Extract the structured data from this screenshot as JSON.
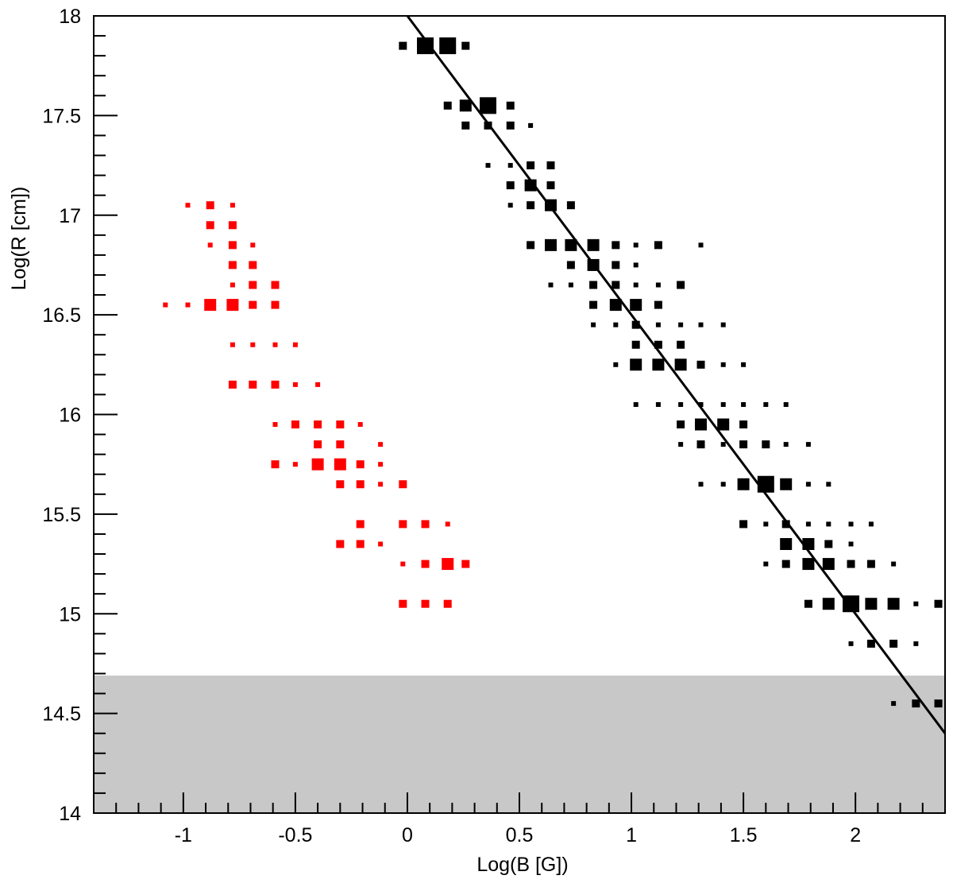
{
  "chart_data": {
    "type": "scatter",
    "title": "",
    "xlabel": "Log(B [G])",
    "ylabel": "Log(R [cm])",
    "xlim": [
      -1.4,
      2.4
    ],
    "ylim": [
      14,
      18
    ],
    "xticks": [
      "-1",
      "-0.5",
      "0",
      "0.5",
      "1",
      "1.5",
      "2"
    ],
    "xtick_values": [
      -1,
      -0.5,
      0,
      0.5,
      1,
      1.5,
      2
    ],
    "yticks": [
      "14",
      "14.5",
      "15",
      "15.5",
      "16",
      "16.5",
      "17",
      "17.5",
      "18"
    ],
    "ytick_values": [
      14,
      14.5,
      15,
      15.5,
      16,
      16.5,
      17,
      17.5,
      18
    ],
    "grid": false,
    "marker": "box, size proportional to bin content (relative weight 1-4)",
    "shaded_region": {
      "y_from": 14,
      "y_to": 14.69,
      "color": "#c8c8c8"
    },
    "fit_line": {
      "slope": -1.5,
      "intercept": 18,
      "color": "#000000"
    },
    "series": [
      {
        "color": "#000000",
        "rows": [
          [
            17.85,
            [
              [
                -0.02,
                2
              ],
              [
                0.08,
                4
              ],
              [
                0.18,
                4
              ],
              [
                0.26,
                2
              ]
            ]
          ],
          [
            17.55,
            [
              [
                0.18,
                2
              ],
              [
                0.26,
                3
              ],
              [
                0.36,
                4
              ],
              [
                0.46,
                2
              ]
            ]
          ],
          [
            17.45,
            [
              [
                0.26,
                2
              ],
              [
                0.36,
                2
              ],
              [
                0.46,
                2
              ],
              [
                0.55,
                1
              ]
            ]
          ],
          [
            17.25,
            [
              [
                0.36,
                1
              ],
              [
                0.46,
                1
              ],
              [
                0.55,
                2
              ],
              [
                0.64,
                2
              ]
            ]
          ],
          [
            17.15,
            [
              [
                0.46,
                2
              ],
              [
                0.55,
                3
              ],
              [
                0.64,
                2
              ]
            ]
          ],
          [
            17.05,
            [
              [
                0.46,
                1
              ],
              [
                0.55,
                2
              ],
              [
                0.64,
                3
              ],
              [
                0.73,
                2
              ]
            ]
          ],
          [
            16.85,
            [
              [
                0.55,
                2
              ],
              [
                0.64,
                3
              ],
              [
                0.73,
                3
              ],
              [
                0.83,
                3
              ],
              [
                0.93,
                2
              ],
              [
                1.02,
                1
              ],
              [
                1.12,
                2
              ],
              [
                1.31,
                1
              ]
            ]
          ],
          [
            16.75,
            [
              [
                0.73,
                2
              ],
              [
                0.83,
                3
              ],
              [
                0.93,
                2
              ],
              [
                1.02,
                1
              ]
            ]
          ],
          [
            16.65,
            [
              [
                0.64,
                1
              ],
              [
                0.73,
                1
              ],
              [
                0.83,
                2
              ],
              [
                0.93,
                2
              ],
              [
                1.02,
                1
              ],
              [
                1.12,
                1
              ],
              [
                1.22,
                2
              ]
            ]
          ],
          [
            16.55,
            [
              [
                0.83,
                2
              ],
              [
                0.93,
                3
              ],
              [
                1.02,
                3
              ],
              [
                1.12,
                2
              ]
            ]
          ],
          [
            16.45,
            [
              [
                0.83,
                1
              ],
              [
                0.93,
                1
              ],
              [
                1.02,
                2
              ],
              [
                1.12,
                1
              ],
              [
                1.22,
                1
              ],
              [
                1.31,
                1
              ],
              [
                1.41,
                1
              ]
            ]
          ],
          [
            16.35,
            [
              [
                1.02,
                2
              ],
              [
                1.12,
                2
              ],
              [
                1.22,
                2
              ]
            ]
          ],
          [
            16.25,
            [
              [
                0.93,
                1
              ],
              [
                1.02,
                3
              ],
              [
                1.12,
                3
              ],
              [
                1.22,
                3
              ],
              [
                1.31,
                2
              ],
              [
                1.41,
                1
              ],
              [
                1.5,
                1
              ]
            ]
          ],
          [
            16.05,
            [
              [
                1.02,
                1
              ],
              [
                1.12,
                1
              ],
              [
                1.22,
                1
              ],
              [
                1.31,
                1
              ],
              [
                1.41,
                1
              ],
              [
                1.5,
                1
              ],
              [
                1.6,
                1
              ],
              [
                1.69,
                1
              ]
            ]
          ],
          [
            15.95,
            [
              [
                1.22,
                2
              ],
              [
                1.31,
                3
              ],
              [
                1.41,
                3
              ],
              [
                1.5,
                2
              ]
            ]
          ],
          [
            15.85,
            [
              [
                1.22,
                1
              ],
              [
                1.31,
                2
              ],
              [
                1.41,
                1
              ],
              [
                1.5,
                2
              ],
              [
                1.6,
                2
              ],
              [
                1.69,
                1
              ],
              [
                1.79,
                1
              ]
            ]
          ],
          [
            15.65,
            [
              [
                1.31,
                1
              ],
              [
                1.41,
                1
              ],
              [
                1.5,
                3
              ],
              [
                1.6,
                4
              ],
              [
                1.69,
                3
              ],
              [
                1.79,
                1
              ],
              [
                1.88,
                1
              ]
            ]
          ],
          [
            15.45,
            [
              [
                1.5,
                2
              ],
              [
                1.6,
                1
              ],
              [
                1.69,
                2
              ],
              [
                1.79,
                1
              ],
              [
                1.88,
                1
              ],
              [
                1.98,
                1
              ],
              [
                2.07,
                1
              ]
            ]
          ],
          [
            15.35,
            [
              [
                1.69,
                3
              ],
              [
                1.79,
                3
              ],
              [
                1.88,
                2
              ],
              [
                1.98,
                1
              ]
            ]
          ],
          [
            15.25,
            [
              [
                1.6,
                1
              ],
              [
                1.69,
                2
              ],
              [
                1.79,
                3
              ],
              [
                1.88,
                3
              ],
              [
                1.98,
                2
              ],
              [
                2.07,
                2
              ],
              [
                2.17,
                1
              ]
            ]
          ],
          [
            15.05,
            [
              [
                1.79,
                2
              ],
              [
                1.88,
                3
              ],
              [
                1.98,
                4
              ],
              [
                2.07,
                3
              ],
              [
                2.17,
                3
              ],
              [
                2.27,
                1
              ],
              [
                2.37,
                2
              ]
            ]
          ],
          [
            14.85,
            [
              [
                1.98,
                1
              ],
              [
                2.07,
                2
              ],
              [
                2.17,
                2
              ],
              [
                2.27,
                1
              ]
            ]
          ],
          [
            14.55,
            [
              [
                2.17,
                1
              ],
              [
                2.27,
                2
              ],
              [
                2.37,
                2
              ]
            ]
          ]
        ]
      },
      {
        "color": "#ff0000",
        "rows": [
          [
            17.05,
            [
              [
                -0.98,
                1
              ],
              [
                -0.88,
                2
              ],
              [
                -0.78,
                1
              ]
            ]
          ],
          [
            16.95,
            [
              [
                -0.88,
                2
              ],
              [
                -0.78,
                2
              ]
            ]
          ],
          [
            16.85,
            [
              [
                -0.88,
                1
              ],
              [
                -0.78,
                2
              ],
              [
                -0.69,
                1
              ]
            ]
          ],
          [
            16.75,
            [
              [
                -0.78,
                2
              ],
              [
                -0.69,
                2
              ]
            ]
          ],
          [
            16.65,
            [
              [
                -0.78,
                1
              ],
              [
                -0.69,
                2
              ],
              [
                -0.59,
                2
              ]
            ]
          ],
          [
            16.55,
            [
              [
                -1.08,
                1
              ],
              [
                -0.98,
                1
              ],
              [
                -0.88,
                3
              ],
              [
                -0.78,
                3
              ],
              [
                -0.69,
                2
              ],
              [
                -0.59,
                2
              ]
            ]
          ],
          [
            16.35,
            [
              [
                -0.78,
                1
              ],
              [
                -0.69,
                1
              ],
              [
                -0.59,
                1
              ],
              [
                -0.5,
                1
              ]
            ]
          ],
          [
            16.15,
            [
              [
                -0.78,
                2
              ],
              [
                -0.69,
                2
              ],
              [
                -0.59,
                2
              ],
              [
                -0.5,
                1
              ],
              [
                -0.4,
                1
              ]
            ]
          ],
          [
            15.95,
            [
              [
                -0.59,
                1
              ],
              [
                -0.5,
                2
              ],
              [
                -0.4,
                2
              ],
              [
                -0.3,
                2
              ],
              [
                -0.21,
                1
              ]
            ]
          ],
          [
            15.85,
            [
              [
                -0.4,
                2
              ],
              [
                -0.3,
                2
              ],
              [
                -0.12,
                1
              ]
            ]
          ],
          [
            15.75,
            [
              [
                -0.59,
                2
              ],
              [
                -0.5,
                1
              ],
              [
                -0.4,
                3
              ],
              [
                -0.3,
                3
              ],
              [
                -0.21,
                2
              ],
              [
                -0.12,
                1
              ]
            ]
          ],
          [
            15.65,
            [
              [
                -0.3,
                2
              ],
              [
                -0.21,
                2
              ],
              [
                -0.12,
                1
              ],
              [
                -0.02,
                2
              ]
            ]
          ],
          [
            15.45,
            [
              [
                -0.21,
                2
              ],
              [
                -0.02,
                2
              ],
              [
                0.08,
                2
              ],
              [
                0.18,
                1
              ]
            ]
          ],
          [
            15.35,
            [
              [
                -0.3,
                2
              ],
              [
                -0.21,
                2
              ],
              [
                -0.12,
                1
              ]
            ]
          ],
          [
            15.25,
            [
              [
                -0.02,
                1
              ],
              [
                0.08,
                2
              ],
              [
                0.18,
                3
              ],
              [
                0.26,
                2
              ]
            ]
          ],
          [
            15.05,
            [
              [
                -0.02,
                2
              ],
              [
                0.08,
                2
              ],
              [
                0.18,
                2
              ]
            ]
          ]
        ]
      }
    ]
  }
}
